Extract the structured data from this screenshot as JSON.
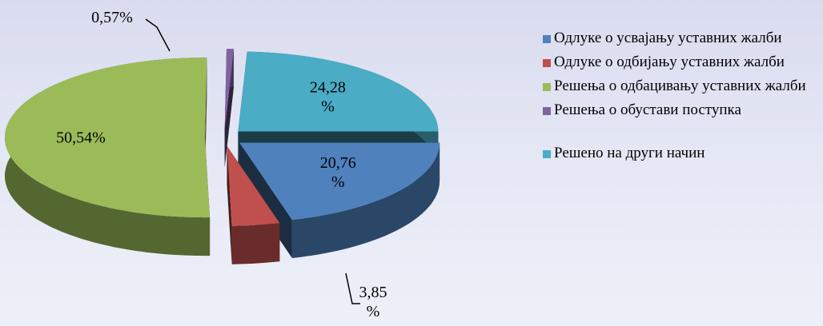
{
  "chart_data": {
    "type": "pie3d",
    "categories": [
      "Одлуке о усвајању уставних жалби",
      "Одлуке о одбијању уставних жалби",
      "Решења о одбацивању уставних жалби",
      "Решења о обустави поступка",
      "Решено на други начин"
    ],
    "values": [
      20.76,
      3.85,
      50.54,
      0.57,
      24.28
    ],
    "value_labels": [
      "20,76 %",
      "3,85 %",
      "50,54%",
      "0,57%",
      "24,28 %"
    ],
    "colors": [
      "#4f81bd",
      "#c0504d",
      "#9bbb59",
      "#8064a2",
      "#4bacc6"
    ],
    "legend": "right"
  }
}
